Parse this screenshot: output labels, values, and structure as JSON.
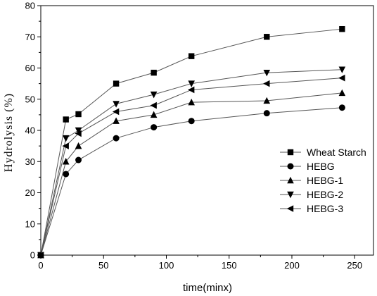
{
  "chart_data": {
    "type": "line",
    "xlabel": "time(minx)",
    "ylabel": "Hydrolysis (%)",
    "xlim": [
      0,
      265
    ],
    "ylim": [
      0,
      80
    ],
    "xticks": [
      0,
      50,
      100,
      150,
      200,
      250
    ],
    "yticks": [
      0,
      10,
      20,
      30,
      40,
      50,
      60,
      70,
      80
    ],
    "grid": false,
    "legend_position": "lower-right",
    "x": [
      0,
      20,
      30,
      60,
      90,
      120,
      180,
      240
    ],
    "series": [
      {
        "name": "Wheat Starch",
        "marker": "square",
        "values": [
          0,
          43.5,
          45.2,
          55.0,
          58.5,
          63.8,
          70.0,
          72.5
        ]
      },
      {
        "name": "HEBG",
        "marker": "circle",
        "values": [
          0,
          26.0,
          30.5,
          37.5,
          41.0,
          43.0,
          45.5,
          47.3
        ]
      },
      {
        "name": "HEBG-1",
        "marker": "triangle-up",
        "values": [
          0,
          30.0,
          35.0,
          43.0,
          45.0,
          49.0,
          49.5,
          52.0
        ]
      },
      {
        "name": "HEBG-2",
        "marker": "triangle-down",
        "values": [
          0,
          37.5,
          40.0,
          48.5,
          51.5,
          55.0,
          58.5,
          59.5
        ]
      },
      {
        "name": "HEBG-3",
        "marker": "triangle-left",
        "values": [
          0,
          35.0,
          39.0,
          46.0,
          48.0,
          53.0,
          55.0,
          56.8
        ]
      }
    ]
  }
}
